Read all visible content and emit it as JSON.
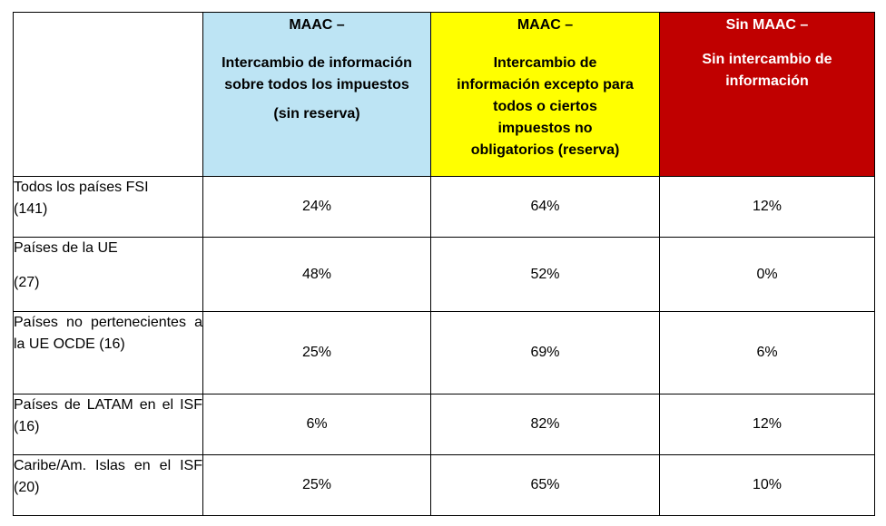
{
  "colors": {
    "col1_bg": "#bde4f4",
    "col2_bg": "#ffff00",
    "col3_bg": "#c00000",
    "col3_text": "#ffffff"
  },
  "columns": [
    {
      "title": "MAAC –",
      "description": "Intercambio de información sobre todos los impuestos",
      "note": "(sin reserva)"
    },
    {
      "title": "MAAC –",
      "description": "Intercambio de información excepto para todos o ciertos impuestos no obligatorios (reserva)",
      "note": ""
    },
    {
      "title": "Sin MAAC –",
      "description": "Sin intercambio de información",
      "note": ""
    }
  ],
  "rows": [
    {
      "label_line1": "Todos los países FSI",
      "label_line2": "(141)",
      "values": [
        "24%",
        "64%",
        "12%"
      ]
    },
    {
      "label_line1": "Países de la UE",
      "label_line2": "(27)",
      "values": [
        "48%",
        "52%",
        "0%"
      ]
    },
    {
      "label": "Países no pertenecientes a la UE OCDE (16)",
      "values": [
        "25%",
        "69%",
        "6%"
      ]
    },
    {
      "label": "Países de LATAM en el ISF (16)",
      "values": [
        "6%",
        "82%",
        "12%"
      ]
    },
    {
      "label": "Caribe/Am. Islas en el ISF (20)",
      "values": [
        "25%",
        "65%",
        "10%"
      ]
    }
  ]
}
